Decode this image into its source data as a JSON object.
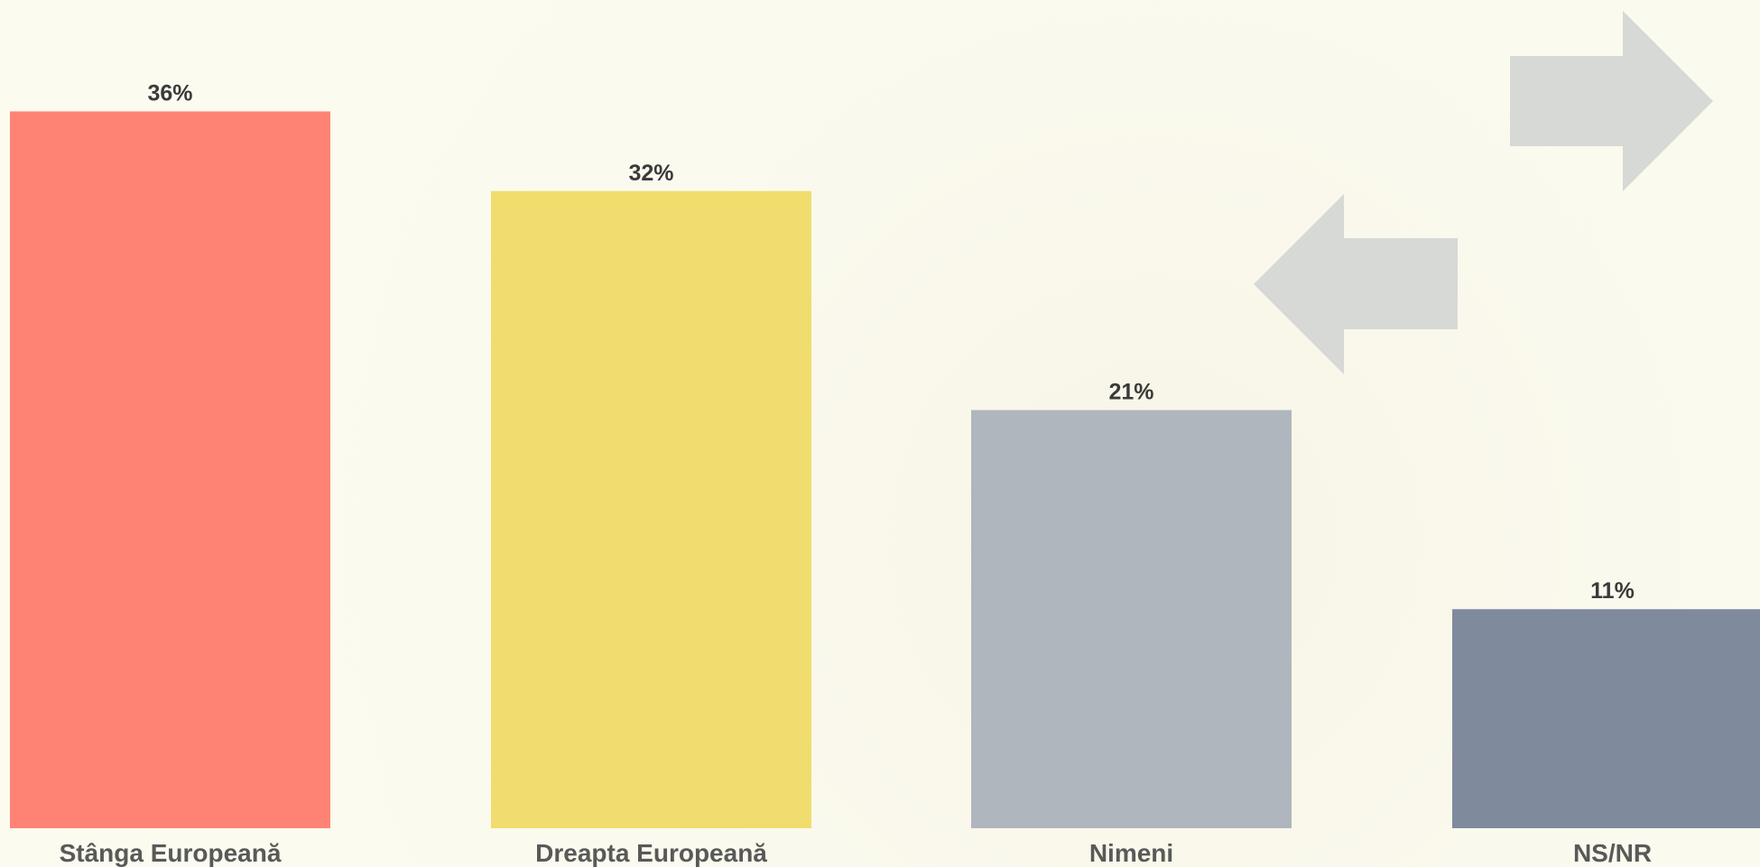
{
  "chart_data": {
    "type": "bar",
    "title": "",
    "xlabel": "",
    "ylabel": "",
    "categories": [
      "Stânga Europeană",
      "Dreapta Europeană",
      "Nimeni",
      "NS/NR"
    ],
    "values": [
      36,
      32,
      21,
      11
    ],
    "value_labels": [
      "36%",
      "32%",
      "21%",
      "11%"
    ],
    "colors": [
      "#ff8375",
      "#f0dd6e",
      "#b0b6be",
      "#7f8b9d"
    ],
    "ylim": [
      0,
      40
    ],
    "grid": false,
    "legend": "none",
    "decorations": {
      "arrow_color": "#d6d9d6",
      "arrows": [
        "right-arrow",
        "left-arrow"
      ]
    }
  }
}
